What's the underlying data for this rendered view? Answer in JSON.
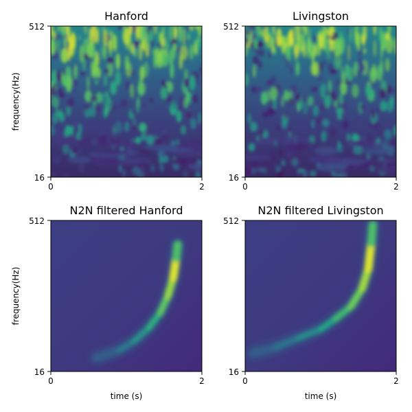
{
  "chart_data": [
    {
      "type": "heatmap",
      "title": "Hanford",
      "xlabel": "",
      "ylabel": "frequency(Hz)",
      "xlim": [
        0,
        2
      ],
      "ylim": [
        16,
        512
      ],
      "xticks": [
        "0",
        "2"
      ],
      "yticks": [
        "16",
        "512"
      ],
      "colormap": "viridis",
      "content": "broadband noise, energy concentrated at higher frequencies"
    },
    {
      "type": "heatmap",
      "title": "Livingston",
      "xlabel": "",
      "ylabel": "",
      "xlim": [
        0,
        2
      ],
      "ylim": [
        16,
        512
      ],
      "xticks": [
        "0",
        "2"
      ],
      "yticks": [
        "16",
        "512"
      ],
      "colormap": "viridis",
      "content": "broadband noise, energy concentrated at higher frequencies"
    },
    {
      "type": "heatmap",
      "title": "N2N filtered Hanford",
      "xlabel": "time (s)",
      "ylabel": "frequency(Hz)",
      "xlim": [
        0,
        2
      ],
      "ylim": [
        16,
        512
      ],
      "xticks": [
        "0",
        "2"
      ],
      "yticks": [
        "16",
        "512"
      ],
      "colormap": "viridis",
      "content": "chirp track rising in frequency, peaking near t=1.65 s",
      "track": {
        "t": [
          0.6,
          0.9,
          1.1,
          1.3,
          1.45,
          1.55,
          1.62,
          1.66,
          1.68
        ],
        "f_frac": [
          0.09,
          0.14,
          0.2,
          0.29,
          0.39,
          0.5,
          0.62,
          0.75,
          0.84
        ]
      }
    },
    {
      "type": "heatmap",
      "title": "N2N filtered Livingston",
      "xlabel": "time (s)",
      "ylabel": "",
      "xlim": [
        0,
        2
      ],
      "ylim": [
        16,
        512
      ],
      "xticks": [
        "0",
        "2"
      ],
      "yticks": [
        "16",
        "512"
      ],
      "colormap": "viridis",
      "content": "chirp track rising in frequency, peaking near t=1.65 s",
      "track": {
        "t": [
          0.1,
          0.4,
          0.7,
          1.0,
          1.2,
          1.4,
          1.55,
          1.63,
          1.67,
          1.69
        ],
        "f_frac": [
          0.12,
          0.16,
          0.22,
          0.28,
          0.35,
          0.43,
          0.55,
          0.68,
          0.85,
          0.97
        ]
      }
    }
  ]
}
